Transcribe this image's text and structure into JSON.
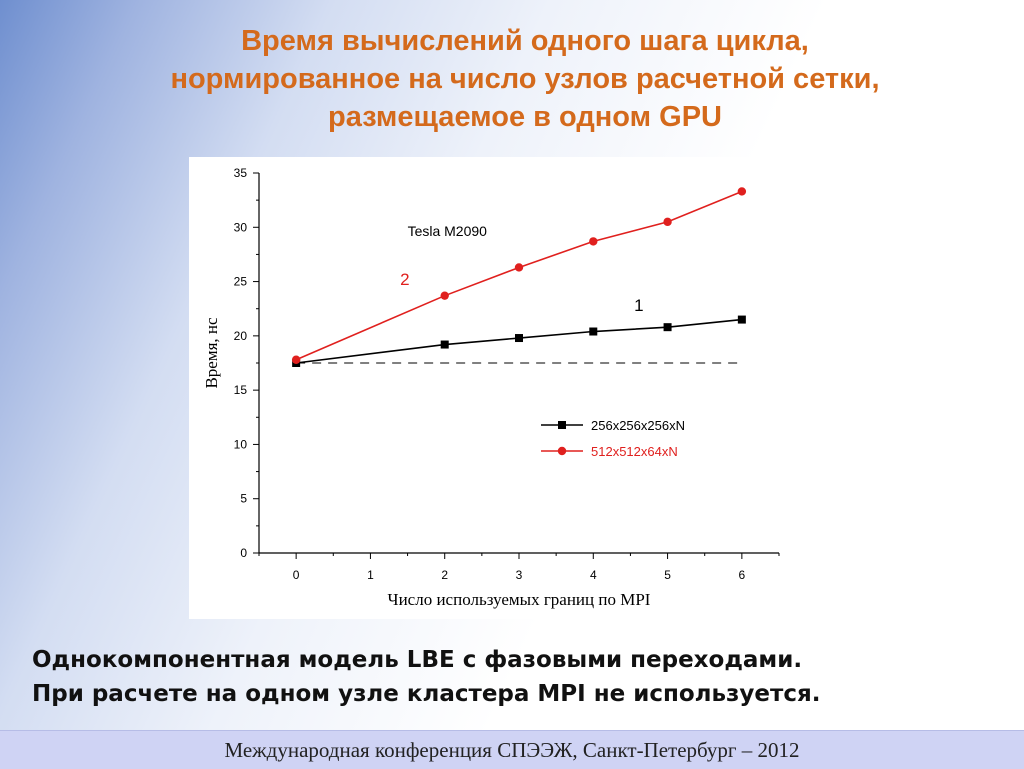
{
  "slide": {
    "title_lines": [
      "Время вычислений одного шага цикла,",
      "нормированное на число узлов расчетной сетки,",
      "размещаемое в одном GPU"
    ],
    "body_lines": [
      "Однокомпонентная модель LBE с фазовыми переходами.",
      "При расчете на одном узле кластера MPI не используется."
    ],
    "footer": "Международная конференция СПЭЭЖ, Санкт-Петербург – 2012"
  },
  "chart_data": {
    "type": "line",
    "annotation": "Tesla M2090",
    "xlabel": "Число используемых границ по MPI",
    "ylabel": "Время, нс",
    "xlim": [
      -0.5,
      6.5
    ],
    "ylim": [
      0,
      35
    ],
    "xticks": [
      0,
      1,
      2,
      3,
      4,
      5,
      6
    ],
    "yticks": [
      0,
      5,
      10,
      15,
      20,
      25,
      30,
      35
    ],
    "grid": false,
    "legend_position": "bottom-right",
    "reference_line": {
      "y": 17.5,
      "style": "dashed",
      "color": "#000000"
    },
    "series": [
      {
        "name": "256x256x256xN",
        "label": "1",
        "color": "#000000",
        "marker": "square",
        "x": [
          0,
          2,
          3,
          4,
          5,
          6
        ],
        "values": [
          17.5,
          19.2,
          19.8,
          20.4,
          20.8,
          21.5
        ]
      },
      {
        "name": "512x512x64xN",
        "label": "2",
        "color": "#e0201e",
        "marker": "circle",
        "x": [
          0,
          2,
          3,
          4,
          5,
          6
        ],
        "values": [
          17.8,
          23.7,
          26.3,
          28.7,
          30.5,
          33.3
        ]
      }
    ]
  }
}
